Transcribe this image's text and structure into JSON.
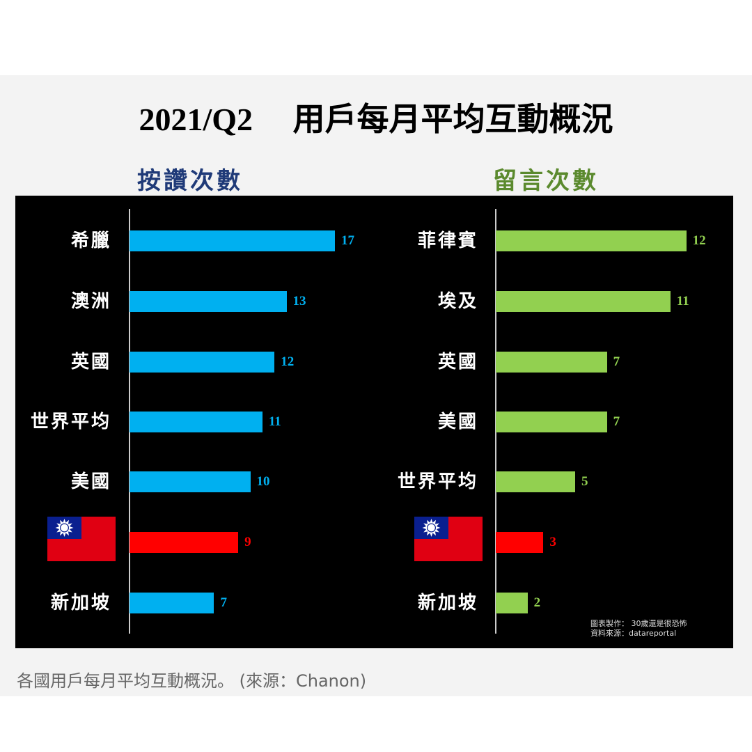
{
  "title": "2021/Q2     用戶每月平均互動概況",
  "caption": "各國用戶每月平均互動概況。 (來源：Chanon)",
  "credit": {
    "line1": "圖表製作： 30歲還是很恐怖",
    "line2": "資料來源：datareportal"
  },
  "colors": {
    "likes": "#00b0f0",
    "comments": "#92d050",
    "taiwan": "#ff0000"
  },
  "chart_data": [
    {
      "type": "bar",
      "orientation": "horizontal",
      "title": "按讚次數",
      "xlim": [
        0,
        17
      ],
      "categories": [
        "希臘",
        "澳洲",
        "英國",
        "世界平均",
        "美國",
        "[taiwan-flag]",
        "新加坡"
      ],
      "values": [
        17,
        13,
        12,
        11,
        10,
        9,
        7
      ],
      "value_labels": [
        "17",
        "13",
        "12",
        "11",
        "10",
        "9",
        "7"
      ]
    },
    {
      "type": "bar",
      "orientation": "horizontal",
      "title": "留言次數",
      "xlim": [
        0,
        12
      ],
      "categories": [
        "菲律賓",
        "埃及",
        "英國",
        "美國",
        "世界平均",
        "[taiwan-flag]",
        "新加坡"
      ],
      "values": [
        12,
        11,
        7,
        7,
        5,
        3,
        2
      ],
      "value_labels": [
        "12",
        "11",
        "7",
        "7",
        "5",
        "3",
        "2"
      ]
    }
  ]
}
